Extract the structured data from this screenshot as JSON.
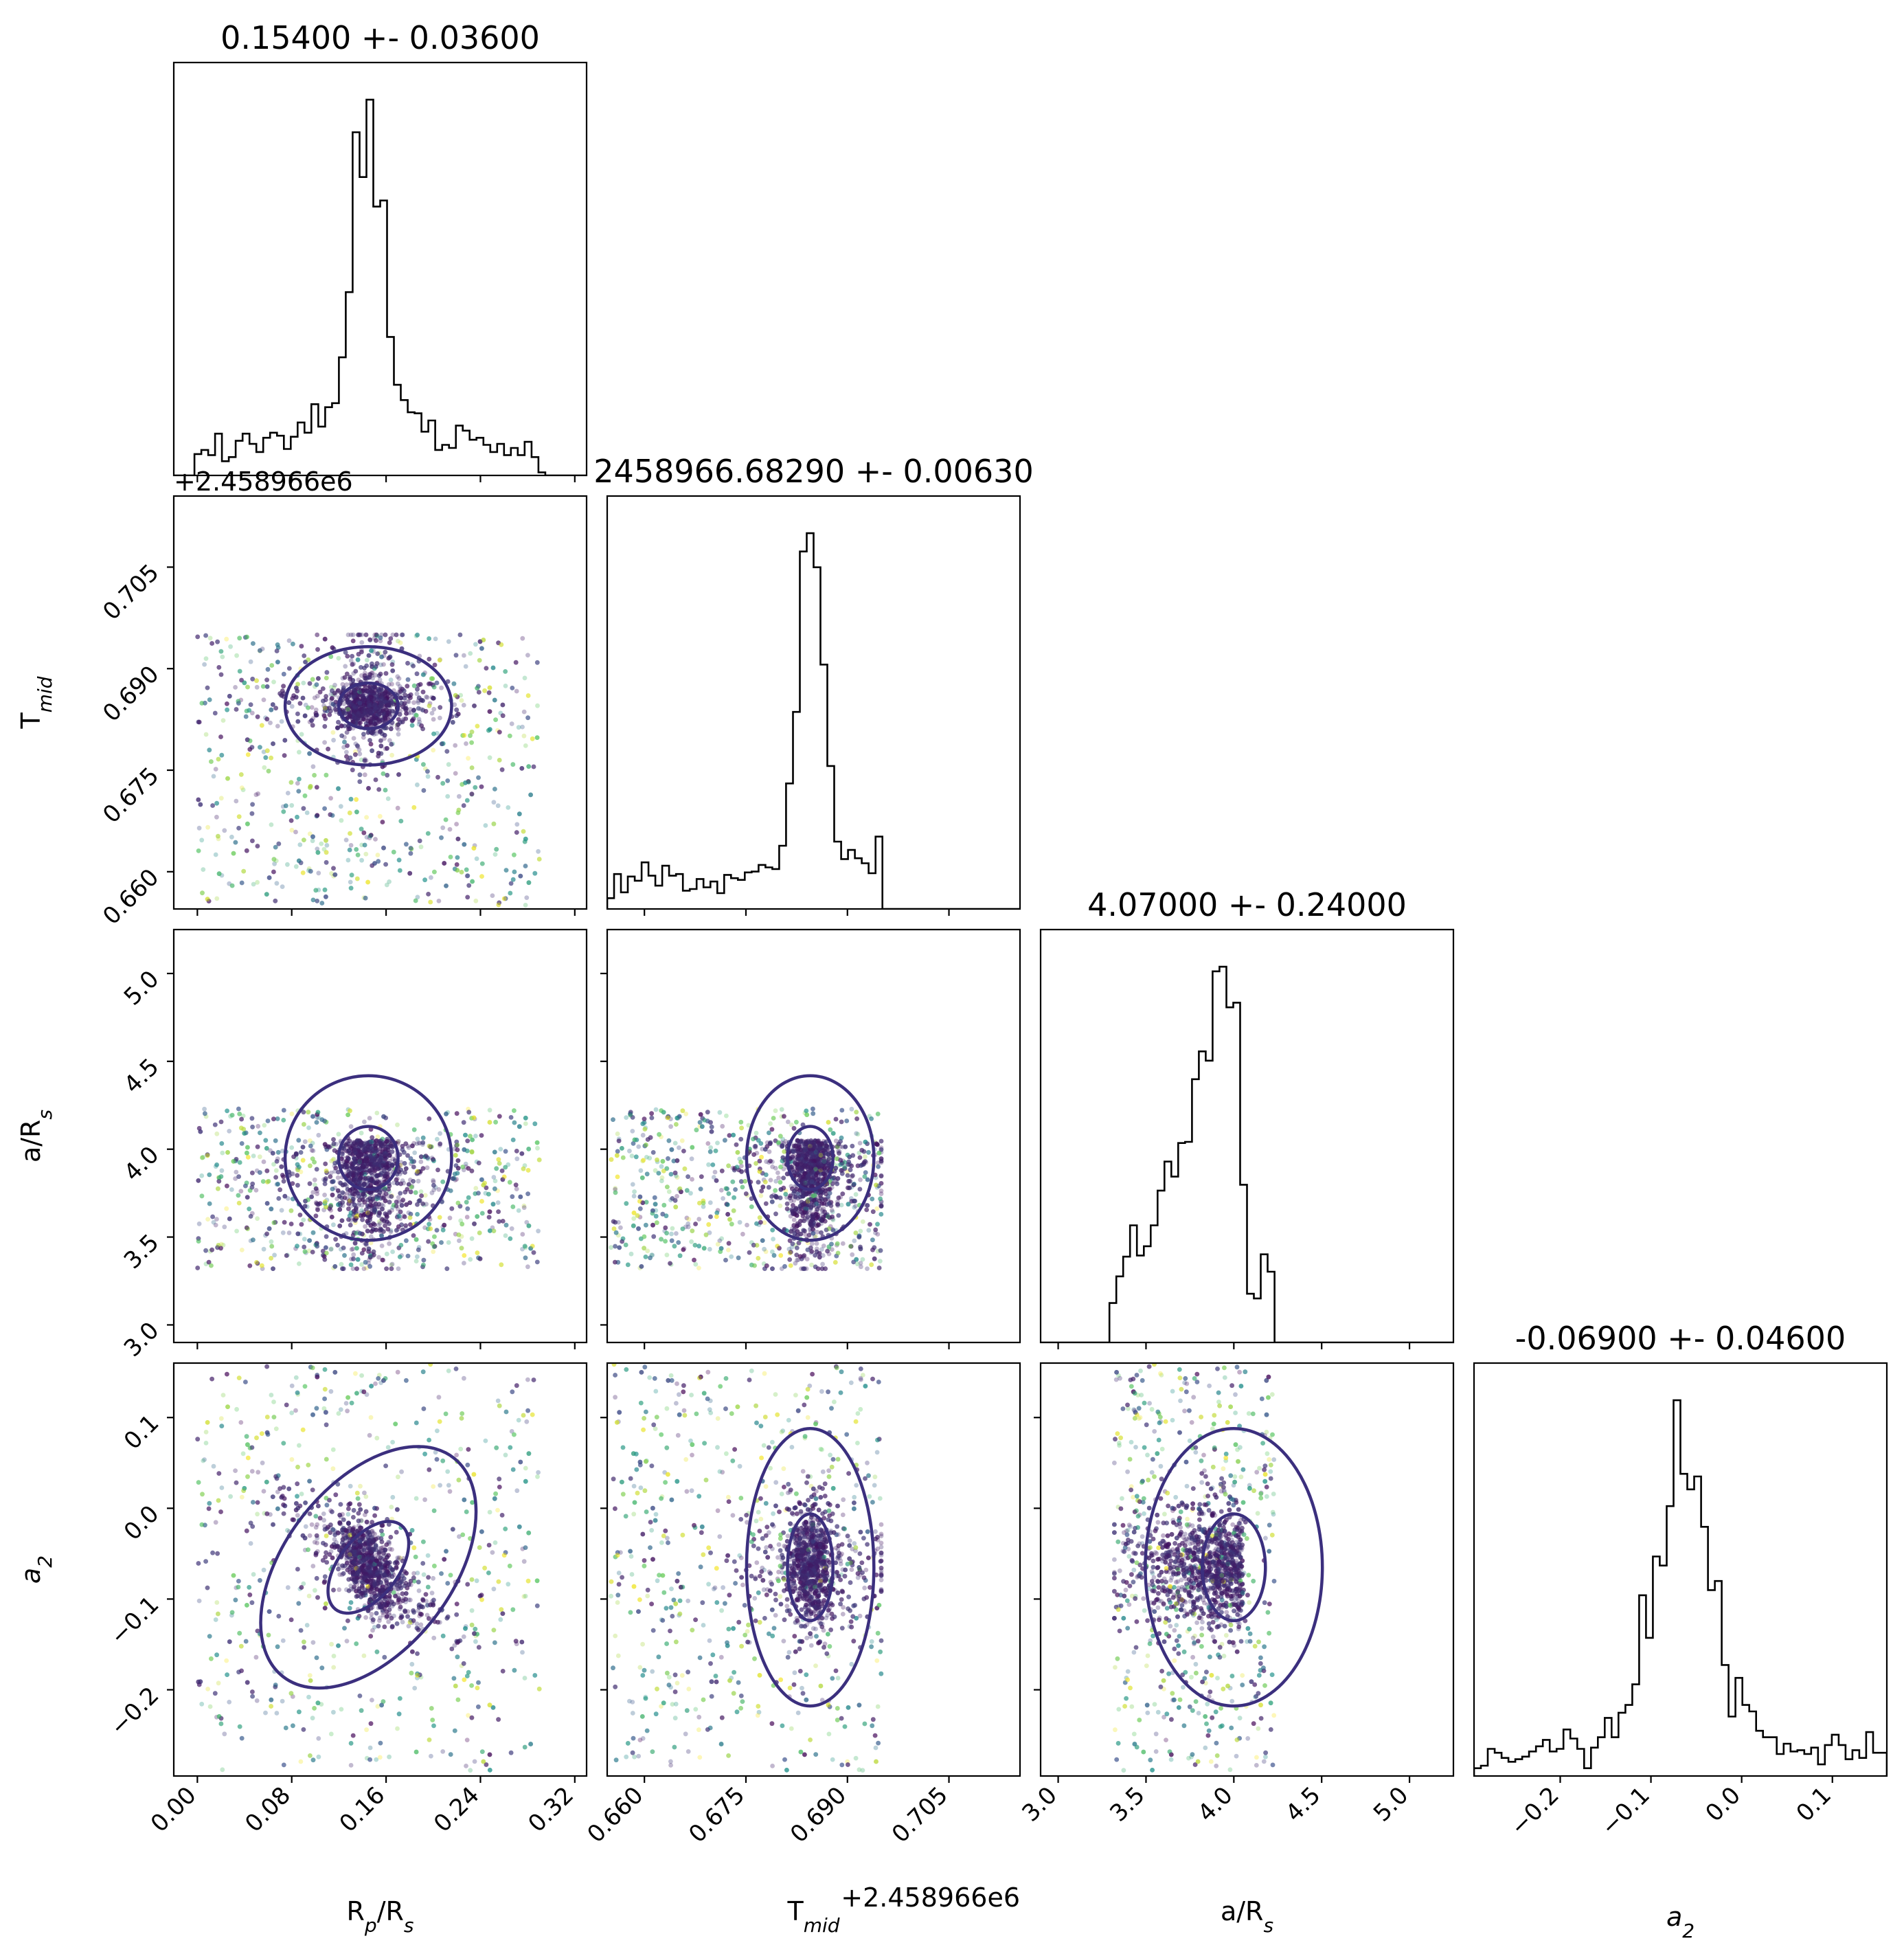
{
  "chart_data": {
    "type": "scatter",
    "subtype": "corner-plot",
    "parameters": [
      {
        "key": "rprs",
        "label": "R",
        "sub": "p",
        "label_tail": "/R",
        "sub2": "s",
        "range": [
          -0.02,
          0.33
        ],
        "ticks": [
          0.0,
          0.08,
          0.16,
          0.24,
          0.32
        ],
        "tick_labels": [
          "0.00",
          "0.08",
          "0.16",
          "0.24",
          "0.32"
        ],
        "title": "0.15400 +- 0.03600"
      },
      {
        "key": "tmid",
        "label": "T",
        "sub": "mid",
        "label_tail": "",
        "sub2": "",
        "range": [
          0.6545,
          0.7155
        ],
        "ticks": [
          0.66,
          0.675,
          0.69,
          0.705
        ],
        "tick_labels": [
          "0.660",
          "0.675",
          "0.690",
          "0.705"
        ],
        "offset": "+2.458966e6",
        "title": "2458966.68290 +- 0.00630"
      },
      {
        "key": "ars",
        "label": "a/R",
        "sub": "s",
        "label_tail": "",
        "sub2": "",
        "range": [
          2.9,
          5.25
        ],
        "ticks": [
          3.0,
          3.5,
          4.0,
          4.5,
          5.0
        ],
        "tick_labels": [
          "3.0",
          "3.5",
          "4.0",
          "4.5",
          "5.0"
        ],
        "title": "4.07000 +- 0.24000"
      },
      {
        "key": "a2",
        "label": "a",
        "sub": "2",
        "label_tail": "",
        "sub2": "",
        "italic": true,
        "range": [
          -0.295,
          0.16
        ],
        "ticks": [
          -0.2,
          -0.1,
          0.0,
          0.1
        ],
        "tick_labels": [
          "−0.2",
          "−0.1",
          "0.0",
          "0.1"
        ],
        "title": "-0.06900 +- 0.04600"
      }
    ],
    "samples": {
      "rprs": {
        "peak": 0.145,
        "sigma": 0.012,
        "bg_range": [
          0.0,
          0.29
        ],
        "core_frac": 0.55
      },
      "tmid": {
        "peak": 0.6845,
        "sigma": 0.0016,
        "bg_range": [
          0.655,
          0.695
        ],
        "core_frac": 0.55
      },
      "ars": {
        "peak": 4.0,
        "sigma": 0.18,
        "bg_range": [
          3.32,
          4.23
        ],
        "core_frac": 0.5
      },
      "a2": {
        "peak": -0.065,
        "sigma": 0.028,
        "bg_range": [
          -0.29,
          0.16
        ],
        "core_frac": 0.55
      }
    },
    "colormap": [
      "#440154",
      "#3b528b",
      "#21918c",
      "#5ec962",
      "#fde725"
    ],
    "grid": false,
    "legend": "none"
  }
}
